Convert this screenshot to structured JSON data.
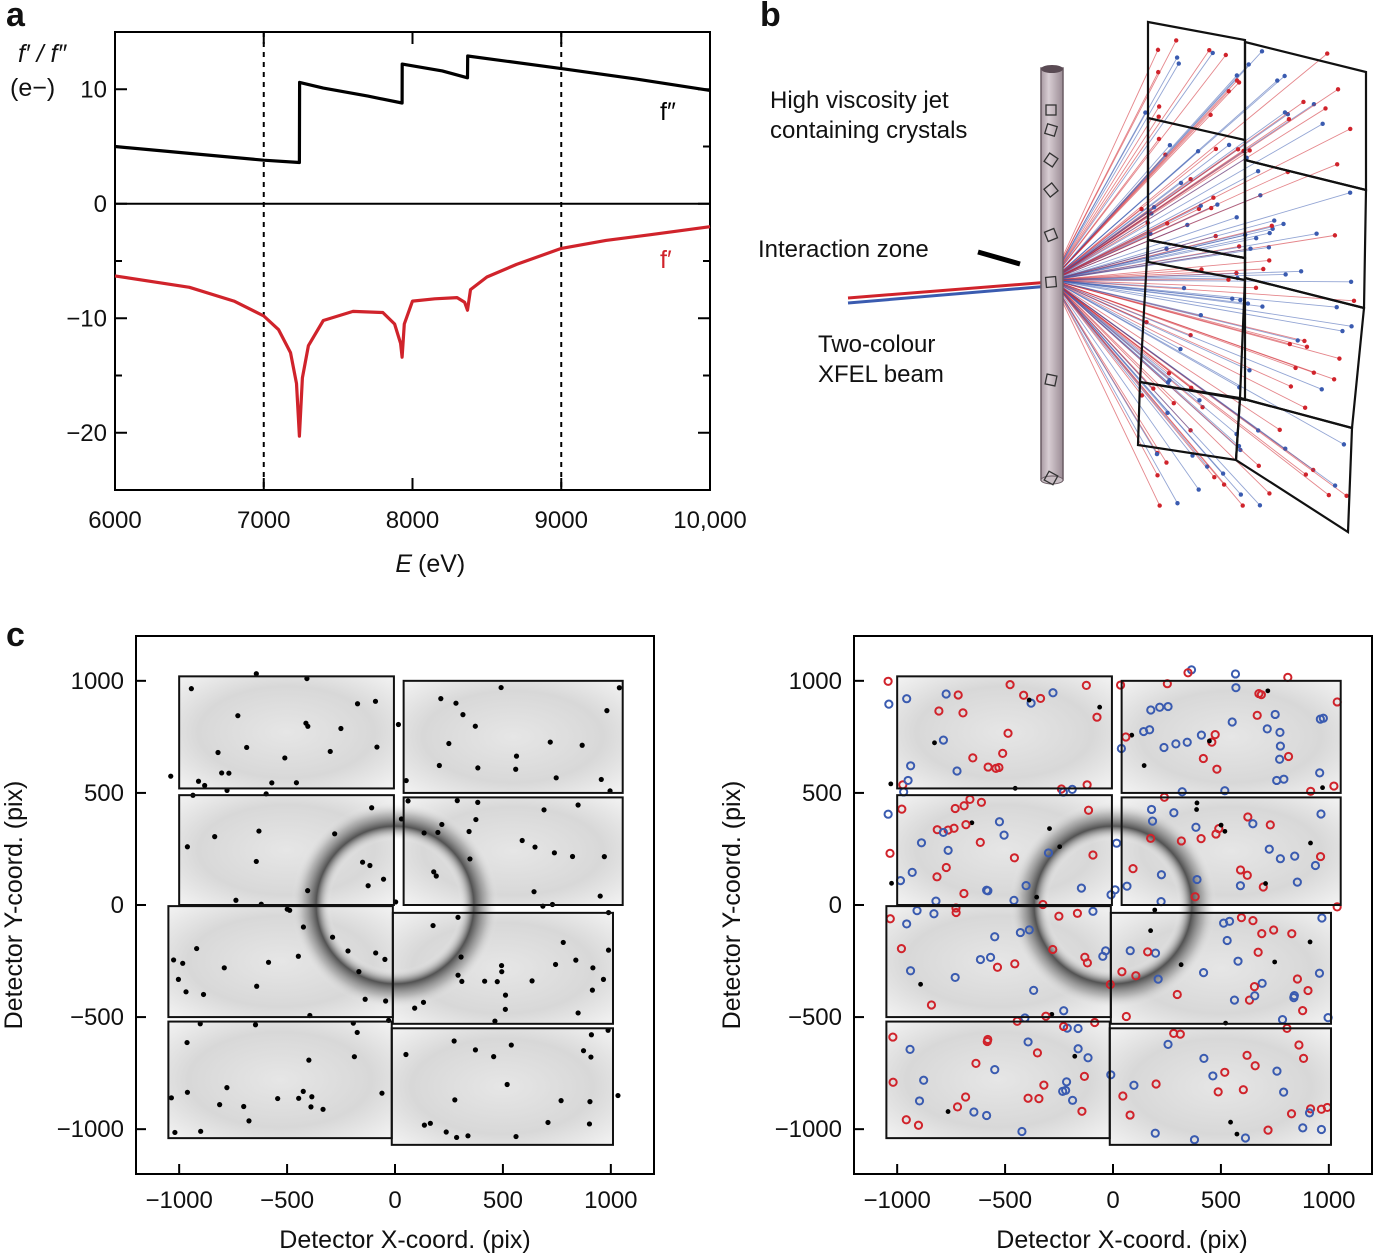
{
  "panels": {
    "a": "a",
    "b": "b",
    "c": "c"
  },
  "chart_data": [
    {
      "id": "a",
      "type": "line",
      "title": "",
      "xlabel_italic": "E",
      "xlabel_rest": "(eV)",
      "ylabel_line1": "f′ / f″",
      "ylabel_line2": "(e−)",
      "xlim": [
        6000,
        10000
      ],
      "ylim": [
        -25,
        15
      ],
      "x_ticks": [
        6000,
        7000,
        8000,
        9000,
        10000
      ],
      "x_tick_labels": [
        "6000",
        "7000",
        "8000",
        "9000",
        "10,000"
      ],
      "y_tick_labels": [
        {
          "value": 10,
          "label": "10"
        },
        {
          "value": 0,
          "label": "0"
        },
        {
          "value": -10,
          "label": "−10"
        },
        {
          "value": -20,
          "label": "−20"
        }
      ],
      "y_minor_ticks": [
        15,
        5,
        -5,
        -15,
        -25
      ],
      "vlines_dashed": [
        7000,
        9000
      ],
      "hline": 0,
      "colors": {
        "f_double_prime": "#000000",
        "f_prime": "#d0232b"
      },
      "series": [
        {
          "name": "f″",
          "color": "#000000",
          "x": [
            6000,
            6500,
            7000,
            7240,
            7241,
            7400,
            7700,
            7930,
            7931,
            8200,
            8370,
            8371,
            9000,
            9500,
            10000
          ],
          "y": [
            5.0,
            4.4,
            3.8,
            3.6,
            10.6,
            10.1,
            9.4,
            8.8,
            12.2,
            11.6,
            11.0,
            12.9,
            11.8,
            10.9,
            9.9
          ]
        },
        {
          "name": "f′",
          "color": "#d0232b",
          "x": [
            6000,
            6500,
            6800,
            7000,
            7100,
            7180,
            7220,
            7240,
            7260,
            7300,
            7400,
            7600,
            7800,
            7880,
            7920,
            7930,
            7945,
            8000,
            8150,
            8300,
            8350,
            8370,
            8390,
            8500,
            8700,
            9000,
            9300,
            9600,
            10000
          ],
          "y": [
            -6.3,
            -7.3,
            -8.5,
            -9.8,
            -11.0,
            -13.0,
            -15.7,
            -20.3,
            -15.2,
            -12.4,
            -10.2,
            -9.4,
            -9.5,
            -10.5,
            -12.2,
            -13.4,
            -10.5,
            -8.5,
            -8.3,
            -8.2,
            -8.6,
            -9.3,
            -7.5,
            -6.4,
            -5.3,
            -3.9,
            -3.2,
            -2.7,
            -2.0
          ]
        }
      ],
      "series_labels": {
        "f_double_prime": "f″",
        "f_prime": "f′"
      }
    },
    {
      "id": "c-left",
      "type": "scatter",
      "xlabel": "Detector X-coord. (pix)",
      "ylabel": "Detector Y-coord. (pix)",
      "xlim": [
        -1200,
        1200
      ],
      "ylim": [
        -1200,
        1200
      ],
      "x_tick_labels": [
        "−1000",
        "−500",
        "0",
        "500",
        "1000"
      ],
      "y_tick_labels": [
        "1000",
        "500",
        "0",
        "−500",
        "−1000"
      ],
      "tick_values": [
        -1000,
        -500,
        0,
        500,
        1000
      ],
      "ring_radius_pix": 310,
      "spot_color": "#000000"
    },
    {
      "id": "c-right",
      "type": "scatter",
      "xlabel": "Detector X-coord. (pix)",
      "ylabel": "Detector Y-coord. (pix)",
      "xlim": [
        -1200,
        1200
      ],
      "ylim": [
        -1200,
        1200
      ],
      "x_tick_labels": [
        "−1000",
        "−500",
        "0",
        "500",
        "1000"
      ],
      "y_tick_labels": [
        "1000",
        "500",
        "0",
        "−500",
        "−1000"
      ],
      "tick_values": [
        -1000,
        -500,
        0,
        500,
        1000
      ],
      "ring_radius_pix": 310,
      "spot_colors": {
        "colour1": "#d0232b",
        "colour2": "#3a5bb0",
        "unassigned": "#000000"
      }
    }
  ],
  "diagram_b": {
    "jet_label_line1": "High viscosity jet",
    "jet_label_line2": "containing crystals",
    "zone_label": "Interaction zone",
    "beam_label_line1": "Two-colour",
    "beam_label_line2": "XFEL beam",
    "beam_colors": {
      "red": "#d0232b",
      "blue": "#3a5bb0"
    }
  }
}
